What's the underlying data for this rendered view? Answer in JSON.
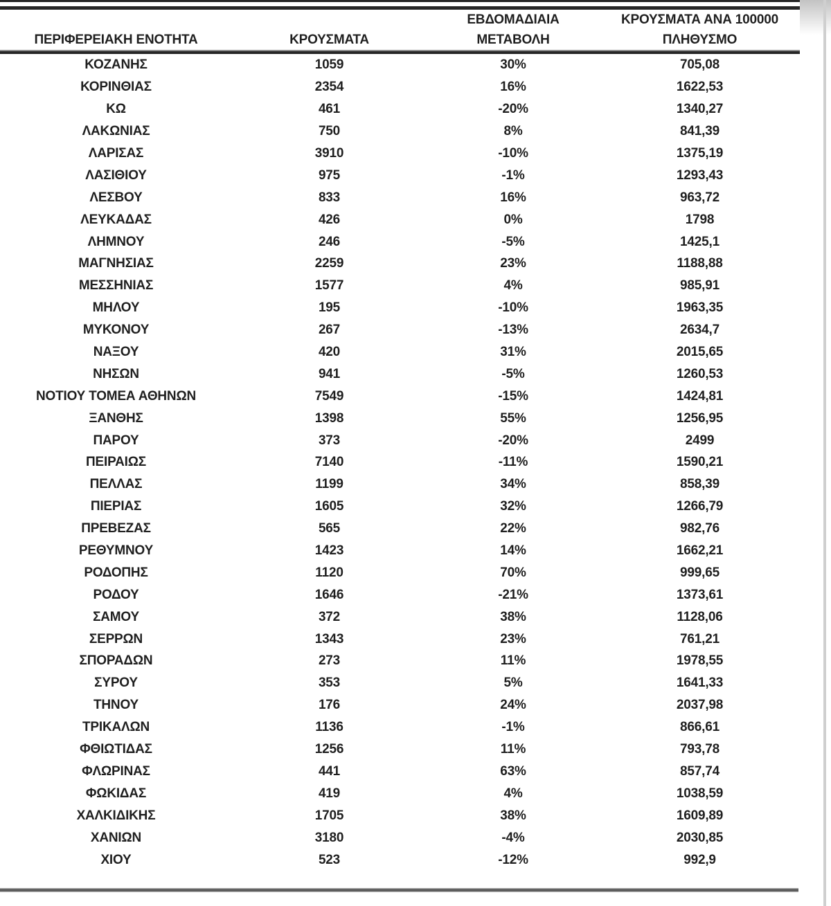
{
  "colors": {
    "text": "#1f1f1f",
    "rule_dark": "#262626",
    "rule_light_gray": "#8f8f8f",
    "bottom_rule_gray": "#3f3f3f",
    "page_edge_gray": "#cfcfcf",
    "background": "#ffffff"
  },
  "table": {
    "header": {
      "region": "ΠΕΡΙΦΕΡΕΙΑΚΗ ΕΝΟΤΗΤΑ",
      "cases": "ΚΡΟΥΣΜΑΤΑ",
      "weekly_change_line1": "ΕΒΔΟΜΑΔΙΑΙΑ",
      "weekly_change_line2": "ΜΕΤΑΒΟΛΗ",
      "per_100k_line1": "ΚΡΟΥΣΜΑΤΑ ΑΝΑ 100000",
      "per_100k_line2": "ΠΛΗΘΥΣΜΟ"
    },
    "rows": [
      {
        "region": "ΚΟΖΑΝΗΣ",
        "cases": "1059",
        "weekly_change": "30%",
        "per_100k": "705,08"
      },
      {
        "region": "ΚΟΡΙΝΘΙΑΣ",
        "cases": "2354",
        "weekly_change": "16%",
        "per_100k": "1622,53"
      },
      {
        "region": "ΚΩ",
        "cases": "461",
        "weekly_change": "-20%",
        "per_100k": "1340,27"
      },
      {
        "region": "ΛΑΚΩΝΙΑΣ",
        "cases": "750",
        "weekly_change": "8%",
        "per_100k": "841,39"
      },
      {
        "region": "ΛΑΡΙΣΑΣ",
        "cases": "3910",
        "weekly_change": "-10%",
        "per_100k": "1375,19"
      },
      {
        "region": "ΛΑΣΙΘΙΟΥ",
        "cases": "975",
        "weekly_change": "-1%",
        "per_100k": "1293,43"
      },
      {
        "region": "ΛΕΣΒΟΥ",
        "cases": "833",
        "weekly_change": "16%",
        "per_100k": "963,72"
      },
      {
        "region": "ΛΕΥΚΑΔΑΣ",
        "cases": "426",
        "weekly_change": "0%",
        "per_100k": "1798"
      },
      {
        "region": "ΛΗΜΝΟΥ",
        "cases": "246",
        "weekly_change": "-5%",
        "per_100k": "1425,1"
      },
      {
        "region": "ΜΑΓΝΗΣΙΑΣ",
        "cases": "2259",
        "weekly_change": "23%",
        "per_100k": "1188,88"
      },
      {
        "region": "ΜΕΣΣΗΝΙΑΣ",
        "cases": "1577",
        "weekly_change": "4%",
        "per_100k": "985,91"
      },
      {
        "region": "ΜΗΛΟΥ",
        "cases": "195",
        "weekly_change": "-10%",
        "per_100k": "1963,35"
      },
      {
        "region": "ΜΥΚΟΝΟΥ",
        "cases": "267",
        "weekly_change": "-13%",
        "per_100k": "2634,7"
      },
      {
        "region": "ΝΑΞΟΥ",
        "cases": "420",
        "weekly_change": "31%",
        "per_100k": "2015,65"
      },
      {
        "region": "ΝΗΣΩΝ",
        "cases": "941",
        "weekly_change": "-5%",
        "per_100k": "1260,53"
      },
      {
        "region": "ΝΟΤΙΟΥ ΤΟΜΕΑ ΑΘΗΝΩΝ",
        "cases": "7549",
        "weekly_change": "-15%",
        "per_100k": "1424,81"
      },
      {
        "region": "ΞΑΝΘΗΣ",
        "cases": "1398",
        "weekly_change": "55%",
        "per_100k": "1256,95"
      },
      {
        "region": "ΠΑΡΟΥ",
        "cases": "373",
        "weekly_change": "-20%",
        "per_100k": "2499"
      },
      {
        "region": "ΠΕΙΡΑΙΩΣ",
        "cases": "7140",
        "weekly_change": "-11%",
        "per_100k": "1590,21"
      },
      {
        "region": "ΠΕΛΛΑΣ",
        "cases": "1199",
        "weekly_change": "34%",
        "per_100k": "858,39"
      },
      {
        "region": "ΠΙΕΡΙΑΣ",
        "cases": "1605",
        "weekly_change": "32%",
        "per_100k": "1266,79"
      },
      {
        "region": "ΠΡΕΒΕΖΑΣ",
        "cases": "565",
        "weekly_change": "22%",
        "per_100k": "982,76"
      },
      {
        "region": "ΡΕΘΥΜΝΟΥ",
        "cases": "1423",
        "weekly_change": "14%",
        "per_100k": "1662,21"
      },
      {
        "region": "ΡΟΔΟΠΗΣ",
        "cases": "1120",
        "weekly_change": "70%",
        "per_100k": "999,65"
      },
      {
        "region": "ΡΟΔΟΥ",
        "cases": "1646",
        "weekly_change": "-21%",
        "per_100k": "1373,61"
      },
      {
        "region": "ΣΑΜΟΥ",
        "cases": "372",
        "weekly_change": "38%",
        "per_100k": "1128,06"
      },
      {
        "region": "ΣΕΡΡΩΝ",
        "cases": "1343",
        "weekly_change": "23%",
        "per_100k": "761,21"
      },
      {
        "region": "ΣΠΟΡΑΔΩΝ",
        "cases": "273",
        "weekly_change": "11%",
        "per_100k": "1978,55"
      },
      {
        "region": "ΣΥΡΟΥ",
        "cases": "353",
        "weekly_change": "5%",
        "per_100k": "1641,33"
      },
      {
        "region": "ΤΗΝΟΥ",
        "cases": "176",
        "weekly_change": "24%",
        "per_100k": "2037,98"
      },
      {
        "region": "ΤΡΙΚΑΛΩΝ",
        "cases": "1136",
        "weekly_change": "-1%",
        "per_100k": "866,61"
      },
      {
        "region": "ΦΘΙΩΤΙΔΑΣ",
        "cases": "1256",
        "weekly_change": "11%",
        "per_100k": "793,78"
      },
      {
        "region": "ΦΛΩΡΙΝΑΣ",
        "cases": "441",
        "weekly_change": "63%",
        "per_100k": "857,74"
      },
      {
        "region": "ΦΩΚΙΔΑΣ",
        "cases": "419",
        "weekly_change": "4%",
        "per_100k": "1038,59"
      },
      {
        "region": "ΧΑΛΚΙΔΙΚΗΣ",
        "cases": "1705",
        "weekly_change": "38%",
        "per_100k": "1609,89"
      },
      {
        "region": "ΧΑΝΙΩΝ",
        "cases": "3180",
        "weekly_change": "-4%",
        "per_100k": "2030,85"
      },
      {
        "region": "ΧΙΟΥ",
        "cases": "523",
        "weekly_change": "-12%",
        "per_100k": "992,9"
      }
    ]
  }
}
